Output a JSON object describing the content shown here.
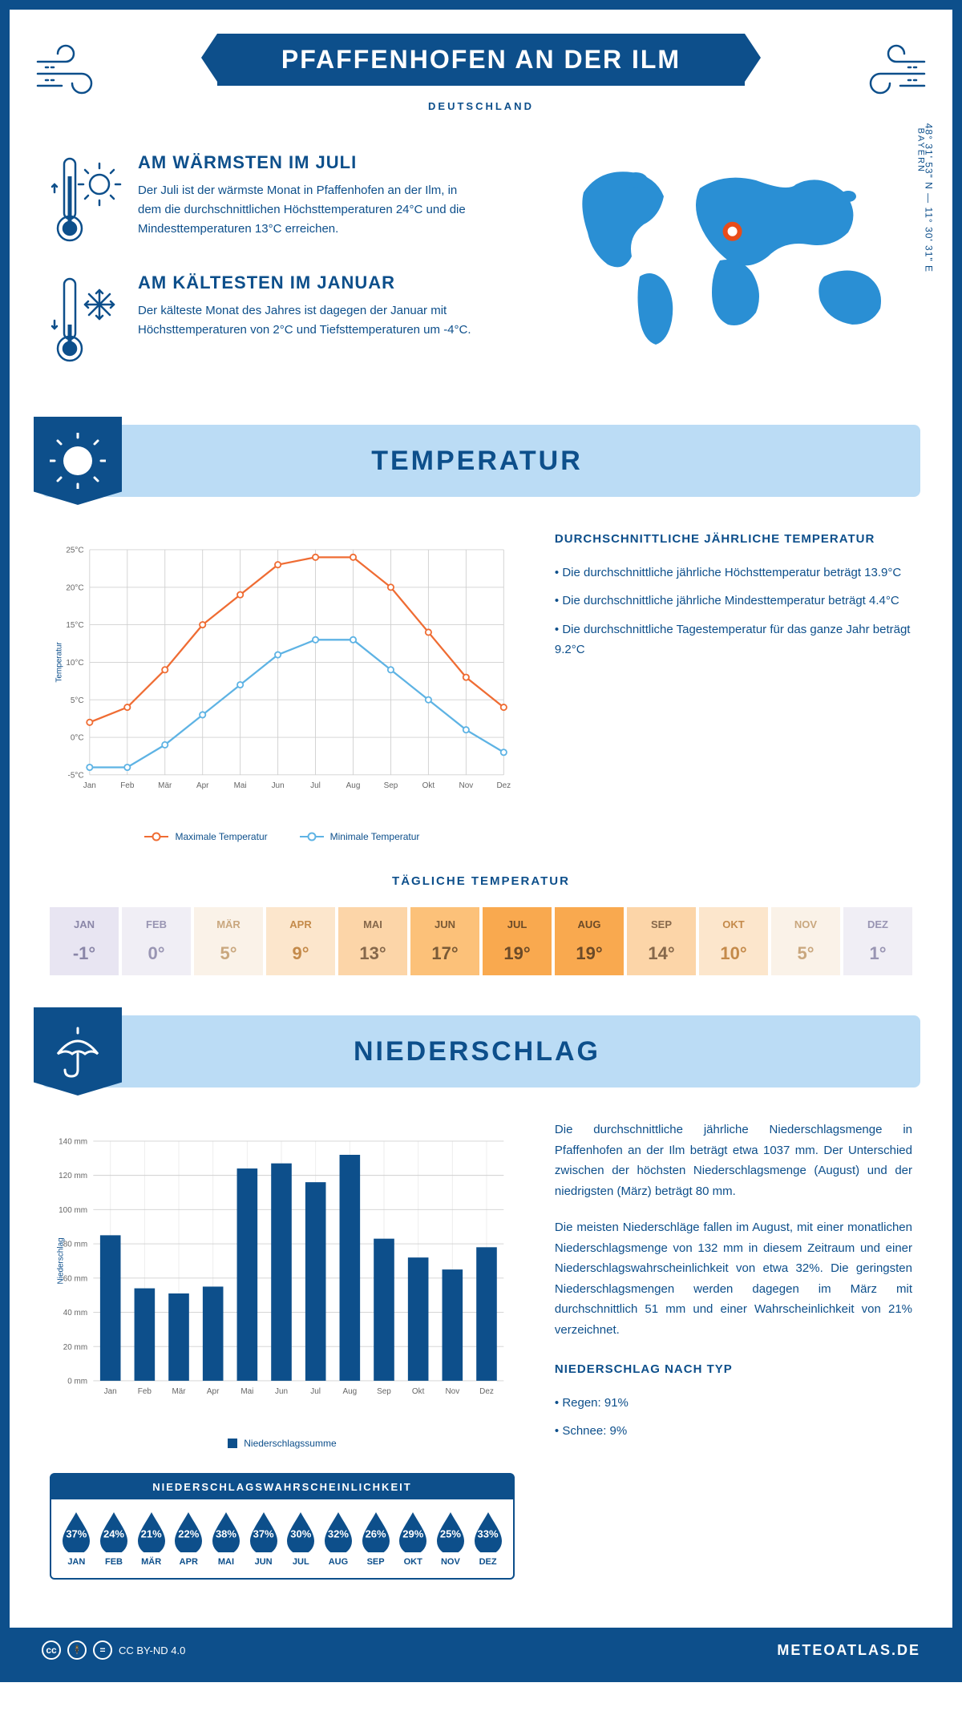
{
  "header": {
    "title": "PFAFFENHOFEN AN DER ILM",
    "subtitle": "DEUTSCHLAND"
  },
  "location": {
    "coords": "48° 31' 53\" N — 11° 30' 31\" E",
    "region": "BAYERN",
    "map_marker": {
      "cx_pct": 49,
      "cy_pct": 38
    }
  },
  "intro": {
    "warmest": {
      "title": "AM WÄRMSTEN IM JULI",
      "text": "Der Juli ist der wärmste Monat in Pfaffenhofen an der Ilm, in dem die durchschnittlichen Höchsttemperaturen 24°C und die Mindesttemperaturen 13°C erreichen."
    },
    "coldest": {
      "title": "AM KÄLTESTEN IM JANUAR",
      "text": "Der kälteste Monat des Jahres ist dagegen der Januar mit Höchsttemperaturen von 2°C und Tiefsttemperaturen um -4°C."
    }
  },
  "colors": {
    "primary": "#0d4f8b",
    "banner_bg": "#bbdcf5",
    "max_line": "#ef6c33",
    "min_line": "#5eb3e4",
    "bar_fill": "#0d4f8b",
    "grid": "#d8d8d8"
  },
  "temperature": {
    "section_title": "TEMPERATUR",
    "months": [
      "Jan",
      "Feb",
      "Mär",
      "Apr",
      "Mai",
      "Jun",
      "Jul",
      "Aug",
      "Sep",
      "Okt",
      "Nov",
      "Dez"
    ],
    "max_series": [
      2,
      4,
      9,
      15,
      19,
      23,
      24,
      24,
      20,
      14,
      8,
      4
    ],
    "min_series": [
      -4,
      -4,
      -1,
      3,
      7,
      11,
      13,
      13,
      9,
      5,
      1,
      -2
    ],
    "ylim": [
      -5,
      25
    ],
    "ytick_step": 5,
    "y_unit": "°C",
    "y_axis_label": "Temperatur",
    "legend": {
      "max": "Maximale Temperatur",
      "min": "Minimale Temperatur"
    },
    "summary": {
      "title": "DURCHSCHNITTLICHE JÄHRLICHE TEMPERATUR",
      "bullets": [
        "Die durchschnittliche jährliche Höchsttemperatur beträgt 13.9°C",
        "Die durchschnittliche jährliche Mindesttemperatur beträgt 4.4°C",
        "Die durchschnittliche Tagestemperatur für das ganze Jahr beträgt 9.2°C"
      ]
    },
    "daily": {
      "title": "TÄGLICHE TEMPERATUR",
      "months": [
        "JAN",
        "FEB",
        "MÄR",
        "APR",
        "MAI",
        "JUN",
        "JUL",
        "AUG",
        "SEP",
        "OKT",
        "NOV",
        "DEZ"
      ],
      "values": [
        "-1°",
        "0°",
        "5°",
        "9°",
        "13°",
        "17°",
        "19°",
        "19°",
        "14°",
        "10°",
        "5°",
        "1°"
      ],
      "cell_bg": [
        "#e8e5f2",
        "#f0eef5",
        "#faf2e8",
        "#fce6cc",
        "#fcd5a8",
        "#fcc179",
        "#f9a94f",
        "#f9a94f",
        "#fcd5a8",
        "#fce6cc",
        "#faf2e8",
        "#f0eef5"
      ],
      "cell_fg": [
        "#8a86a8",
        "#9995b3",
        "#c9a77e",
        "#c48a4a",
        "#86684b",
        "#7a5a36",
        "#6b4a28",
        "#6b4a28",
        "#86684b",
        "#c48a4a",
        "#c9a77e",
        "#9995b3"
      ]
    }
  },
  "precipitation": {
    "section_title": "NIEDERSCHLAG",
    "months": [
      "Jan",
      "Feb",
      "Mär",
      "Apr",
      "Mai",
      "Jun",
      "Jul",
      "Aug",
      "Sep",
      "Okt",
      "Nov",
      "Dez"
    ],
    "values": [
      85,
      54,
      51,
      55,
      124,
      127,
      116,
      132,
      83,
      72,
      65,
      78
    ],
    "ylim": [
      0,
      140
    ],
    "ytick_step": 20,
    "y_unit": " mm",
    "y_axis_label": "Niederschlag",
    "legend_label": "Niederschlagssumme",
    "text": {
      "p1": "Die durchschnittliche jährliche Niederschlagsmenge in Pfaffenhofen an der Ilm beträgt etwa 1037 mm. Der Unterschied zwischen der höchsten Niederschlagsmenge (August) und der niedrigsten (März) beträgt 80 mm.",
      "p2": "Die meisten Niederschläge fallen im August, mit einer monatlichen Niederschlagsmenge von 132 mm in diesem Zeitraum und einer Niederschlagswahrscheinlichkeit von etwa 32%. Die geringsten Niederschlagsmengen werden dagegen im März mit durchschnittlich 51 mm und einer Wahrscheinlichkeit von 21% verzeichnet.",
      "type_title": "NIEDERSCHLAG NACH TYP",
      "type_bullets": [
        "Regen: 91%",
        "Schnee: 9%"
      ]
    },
    "probability": {
      "title": "NIEDERSCHLAGSWAHRSCHEINLICHKEIT",
      "months": [
        "JAN",
        "FEB",
        "MÄR",
        "APR",
        "MAI",
        "JUN",
        "JUL",
        "AUG",
        "SEP",
        "OKT",
        "NOV",
        "DEZ"
      ],
      "values": [
        "37%",
        "24%",
        "21%",
        "22%",
        "38%",
        "37%",
        "30%",
        "32%",
        "26%",
        "29%",
        "25%",
        "33%"
      ]
    }
  },
  "footer": {
    "license": "CC BY-ND 4.0",
    "brand": "METEOATLAS.DE"
  }
}
